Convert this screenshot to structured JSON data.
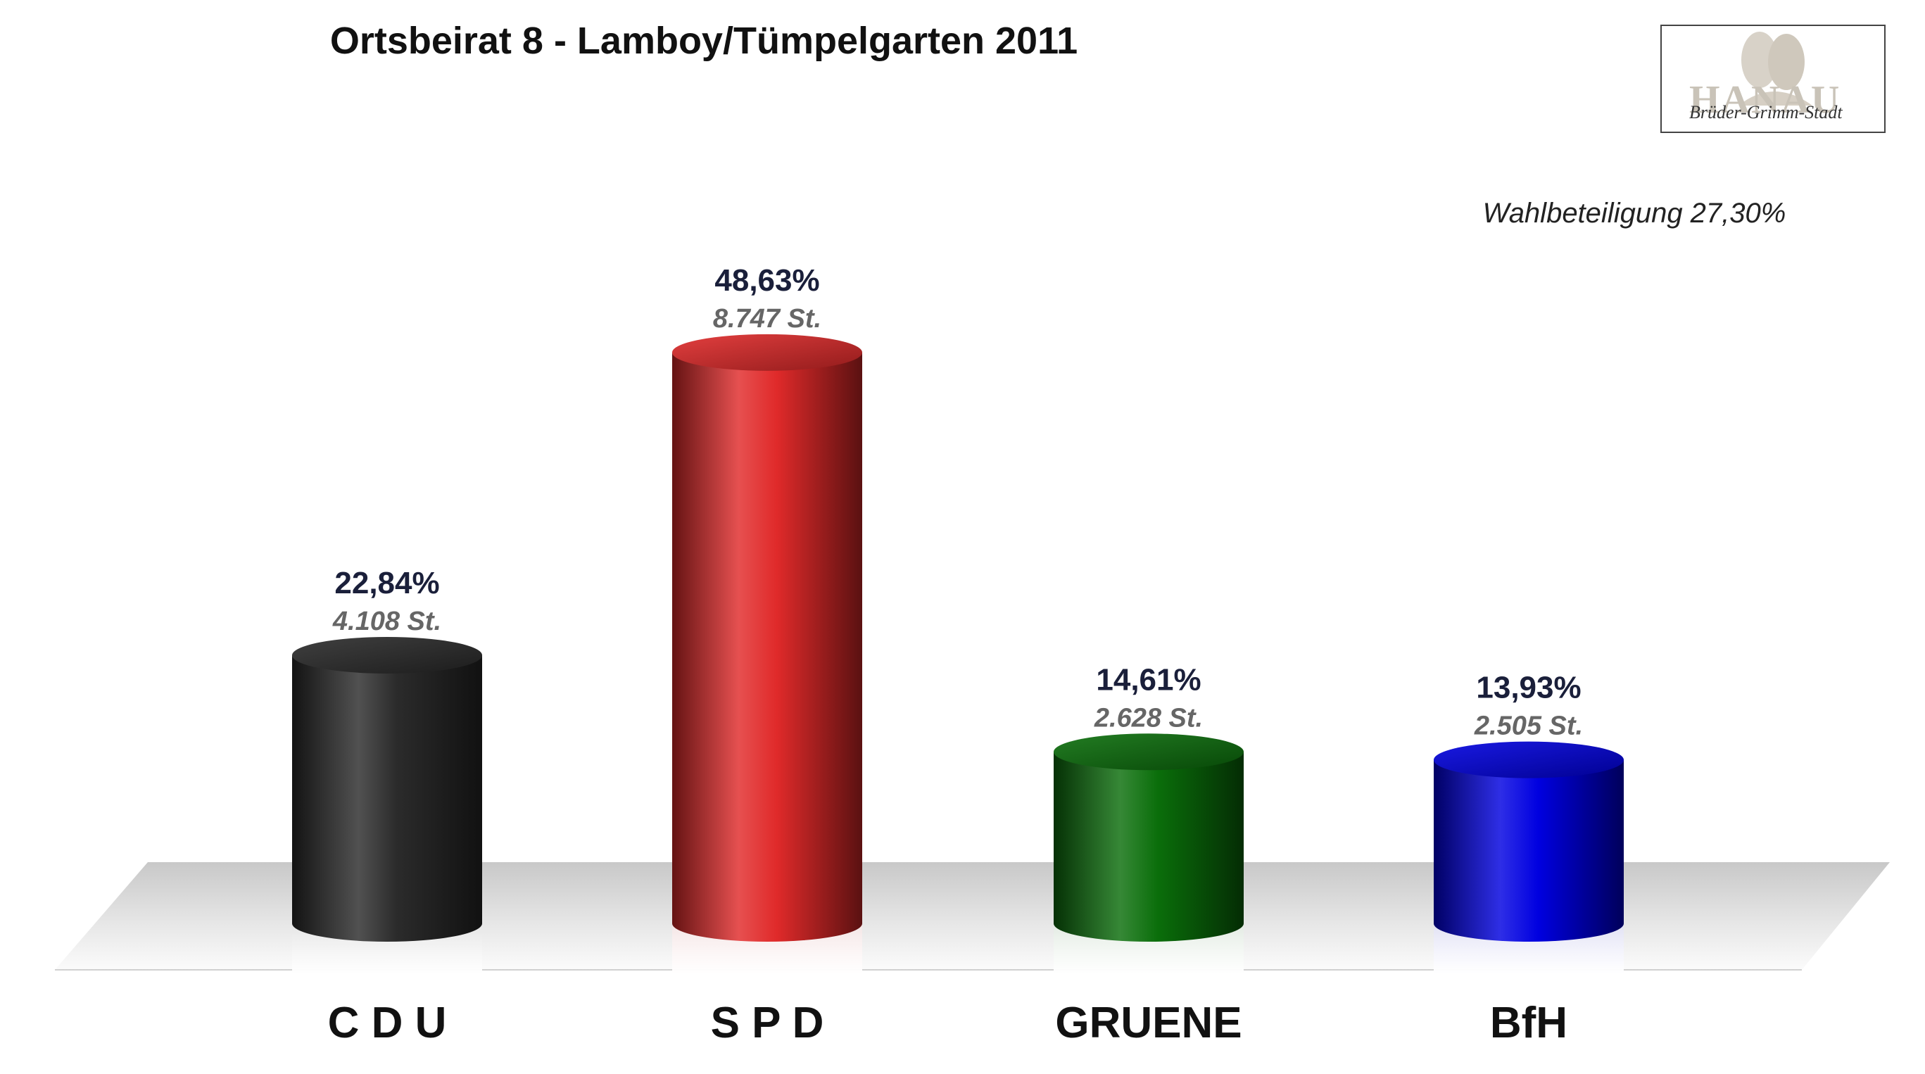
{
  "chart_data": {
    "type": "bar",
    "style": "3d-cylinder",
    "title": "Ortsbeirat 8 - Lamboy/Tümpelgarten 2011",
    "categories": [
      "C D U",
      "S P D",
      "GRUENE",
      "BfH"
    ],
    "values": [
      22.84,
      48.63,
      14.61,
      13.93
    ],
    "value_labels": [
      "22,84%",
      "48,63%",
      "14,61%",
      "13,93%"
    ],
    "vote_labels": [
      "4.108 St.",
      "8.747 St.",
      "2.628 St.",
      "2.505 St."
    ],
    "votes": [
      4108,
      8747,
      2628,
      2505
    ],
    "colors": [
      "#2b2b2b",
      "#e02a2a",
      "#0a6e0a",
      "#0000e0"
    ],
    "ylim": [
      0,
      50
    ],
    "grid": false,
    "legend": "none",
    "annotation": "Wahlbeteiligung 27,30%"
  },
  "logo": {
    "word": "HANAU",
    "script": "Brüder-Grimm-Stadt",
    "icon": "grimm-brothers-portrait-icon"
  }
}
